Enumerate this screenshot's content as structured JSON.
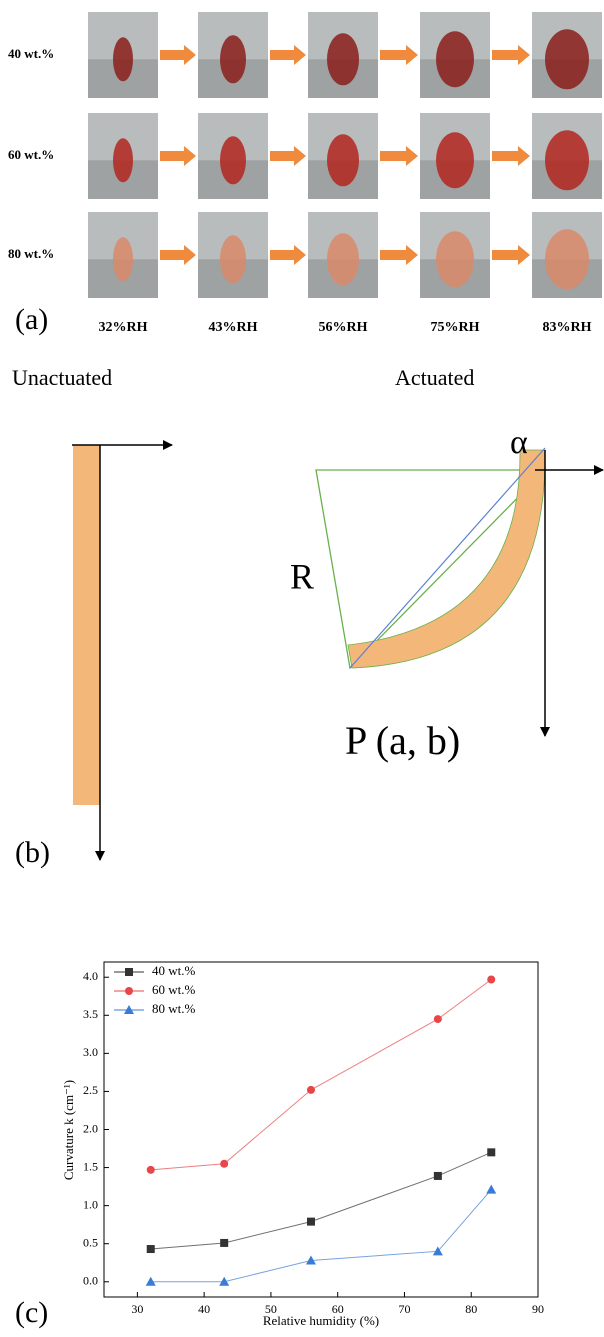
{
  "panel_a": {
    "label": "(a)",
    "rows": [
      "40 wt.%",
      "60 wt.%",
      "80 wt.%"
    ],
    "columns": [
      "32%RH",
      "43%RH",
      "56%RH",
      "75%RH",
      "83%RH"
    ],
    "left_caption": "Unactuated",
    "right_caption": "Actuated"
  },
  "panel_b": {
    "label": "(b)",
    "radius_label": "R",
    "angle_label": "α",
    "point_label": "P (a, b)"
  },
  "chart_data": {
    "type": "line",
    "panel_label": "(c)",
    "x_label": "Relative humidity (%)",
    "y_label": "Curvature k (cm⁻¹)",
    "x": [
      32,
      43,
      56,
      75,
      83
    ],
    "series": [
      {
        "name": "40 wt.%",
        "color": "#333333",
        "marker": "square",
        "values": [
          0.43,
          0.51,
          0.79,
          1.39,
          1.7
        ]
      },
      {
        "name": "60 wt.%",
        "color": "#e8474a",
        "marker": "circle",
        "values": [
          1.47,
          1.55,
          2.52,
          3.45,
          3.97
        ]
      },
      {
        "name": "80 wt.%",
        "color": "#3a7bd5",
        "marker": "triangle",
        "values": [
          0,
          0,
          0.28,
          0.4,
          1.21
        ]
      }
    ],
    "xlim": [
      25,
      90
    ],
    "xticks": [
      30,
      40,
      50,
      60,
      70,
      80,
      90
    ],
    "ylim": [
      -0.2,
      4.2
    ],
    "yticks": [
      {
        "value": 0,
        "label": "0.0"
      },
      0.5,
      {
        "value": 1,
        "label": "1.0"
      },
      1.5,
      {
        "value": 2,
        "label": "2.0"
      },
      2.5,
      {
        "value": 3,
        "label": "3.0"
      },
      3.5,
      {
        "value": 4,
        "label": "4.0"
      }
    ],
    "legend": "upper left"
  }
}
